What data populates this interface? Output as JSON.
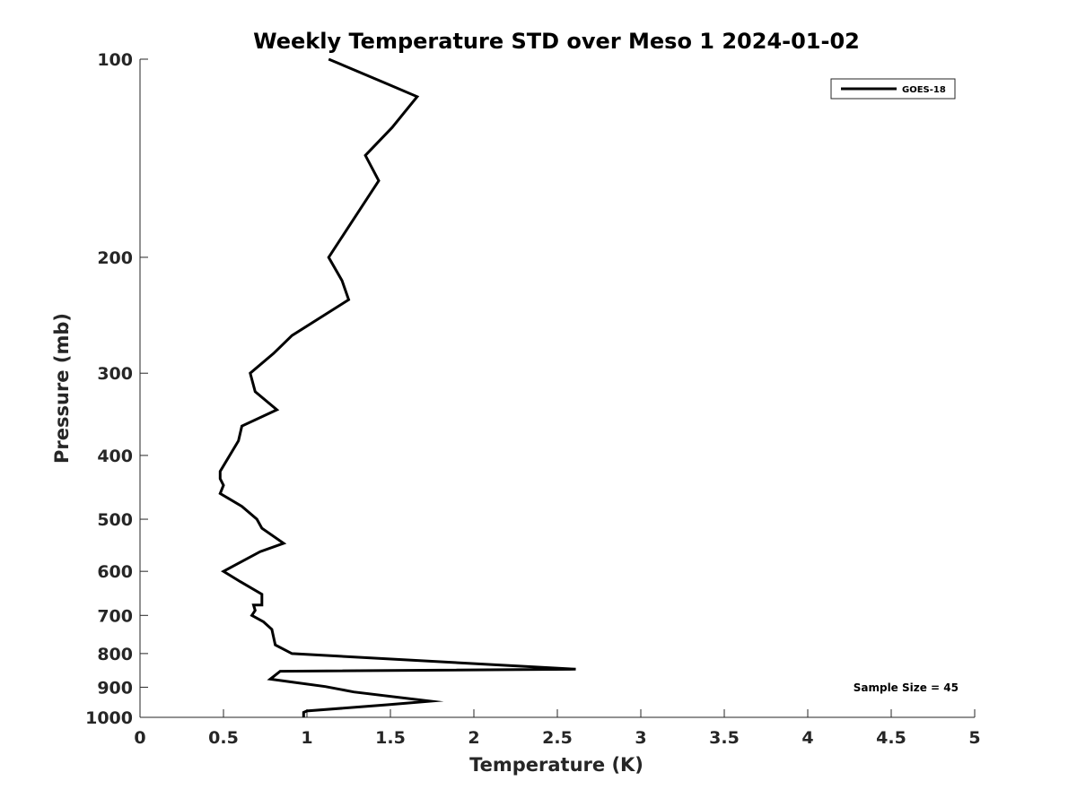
{
  "chart_data": {
    "type": "line",
    "title": "Weekly Temperature STD over Meso 1 2024-01-02",
    "xlabel": "Temperature (K)",
    "ylabel": "Pressure (mb)",
    "xlim": [
      0,
      5
    ],
    "ylim": [
      100,
      1000
    ],
    "y_scale": "log",
    "y_reversed": true,
    "x_ticks": [
      "0",
      "0.5",
      "1",
      "1.5",
      "2",
      "2.5",
      "3",
      "3.5",
      "4",
      "4.5",
      "5"
    ],
    "y_ticks": [
      "100",
      "200",
      "300",
      "400",
      "500",
      "600",
      "700",
      "800",
      "900",
      "1000"
    ],
    "grid": false,
    "legend_position": "top-right",
    "annotation": "Sample Size = 45",
    "series": [
      {
        "name": "GOES-18",
        "color": "#000000",
        "x": [
          1.13,
          1.48,
          1.66,
          1.51,
          1.35,
          1.43,
          1.13,
          1.21,
          1.25,
          0.91,
          0.8,
          0.66,
          0.69,
          0.82,
          0.61,
          0.59,
          0.48,
          0.48,
          0.5,
          0.48,
          0.61,
          0.7,
          0.73,
          0.86,
          0.72,
          0.57,
          0.5,
          0.6,
          0.73,
          0.73,
          0.68,
          0.69,
          0.67,
          0.74,
          0.79,
          0.81,
          0.91,
          2.61,
          0.84,
          0.78,
          1.11,
          1.28,
          1.74,
          1.48,
          1.0,
          0.98,
          0.98
        ],
        "y": [
          100,
          109,
          114,
          127,
          140,
          153,
          200,
          217,
          232,
          263,
          280,
          300,
          320,
          341,
          361,
          380,
          423,
          434,
          444,
          457,
          478,
          500,
          516,
          544,
          560,
          587,
          600,
          622,
          650,
          675,
          675,
          688,
          700,
          716,
          735,
          776,
          800,
          845,
          851,
          875,
          898,
          915,
          945,
          957,
          978,
          983,
          1000
        ]
      }
    ]
  }
}
